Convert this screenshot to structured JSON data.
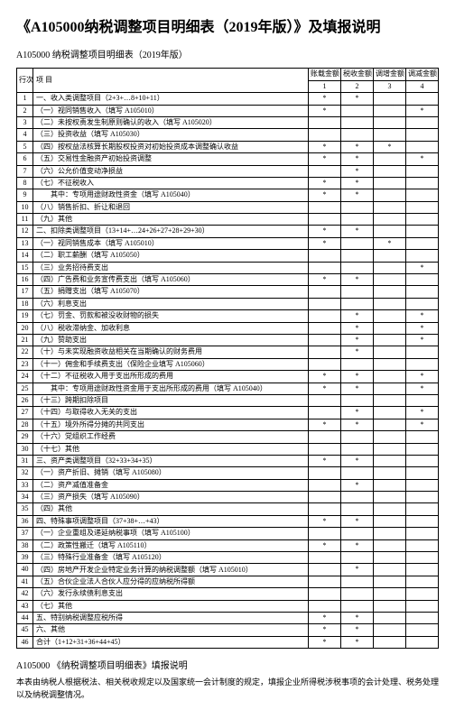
{
  "title": "《A105000纳税调整项目明细表（2019年版）》及填报说明",
  "subtitle": "A105000 纳税调整项目明细表（2019年版）",
  "header": {
    "rownum": "行次",
    "item": "项 目",
    "c1": "账载金额",
    "c2": "税收金额",
    "c3": "调增金额",
    "c4": "调减金额",
    "n1": "1",
    "n2": "2",
    "n3": "3",
    "n4": "4"
  },
  "rows": [
    {
      "n": "1",
      "item": "一、收入类调整项目（2+3+…8+10+11）",
      "c1": "*",
      "c2": "*",
      "c3": "",
      "c4": ""
    },
    {
      "n": "2",
      "item": "（一）视同销售收入（填写 A105010）",
      "c1": "*",
      "c2": "",
      "c3": "",
      "c4": "*"
    },
    {
      "n": "3",
      "item": "（二）未按权责发生制原则确认的收入（填写 A105020）",
      "c1": "",
      "c2": "",
      "c3": "",
      "c4": ""
    },
    {
      "n": "4",
      "item": "（三）投资收益（填写 A105030）",
      "c1": "",
      "c2": "",
      "c3": "",
      "c4": ""
    },
    {
      "n": "5",
      "item": "（四）按权益法核算长期股权投资对初始投资成本调整确认收益",
      "c1": "*",
      "c2": "*",
      "c3": "*",
      "c4": "",
      "wrap": true
    },
    {
      "n": "6",
      "item": "（五）交易性金融资产初始投资调整",
      "c1": "*",
      "c2": "*",
      "c3": "",
      "c4": "*"
    },
    {
      "n": "7",
      "item": "（六）公允价值变动净损益",
      "c1": "",
      "c2": "*",
      "c3": "",
      "c4": ""
    },
    {
      "n": "8",
      "item": "（七）不征税收入",
      "c1": "*",
      "c2": "*",
      "c3": "",
      "c4": ""
    },
    {
      "n": "9",
      "item": "　　其中：专项用途财政性资金（填写 A105040）",
      "c1": "*",
      "c2": "*",
      "c3": "",
      "c4": ""
    },
    {
      "n": "10",
      "item": "（八）销售折扣、折让和退回",
      "c1": "",
      "c2": "",
      "c3": "",
      "c4": ""
    },
    {
      "n": "11",
      "item": "（九）其他",
      "c1": "",
      "c2": "",
      "c3": "",
      "c4": ""
    },
    {
      "n": "12",
      "item": "二、扣除类调整项目（13+14+…24+26+27+28+29+30）",
      "c1": "*",
      "c2": "*",
      "c3": "",
      "c4": ""
    },
    {
      "n": "13",
      "item": "（一）视同销售成本（填写 A105010）",
      "c1": "*",
      "c2": "",
      "c3": "*",
      "c4": ""
    },
    {
      "n": "14",
      "item": "（二）职工薪酬（填写 A105050）",
      "c1": "",
      "c2": "",
      "c3": "",
      "c4": ""
    },
    {
      "n": "15",
      "item": "（三）业务招待费支出",
      "c1": "",
      "c2": "",
      "c3": "",
      "c4": "*"
    },
    {
      "n": "16",
      "item": "（四）广告费和业务宣传费支出（填写 A105060）",
      "c1": "*",
      "c2": "*",
      "c3": "",
      "c4": ""
    },
    {
      "n": "17",
      "item": "（五）捐赠支出（填写 A105070）",
      "c1": "",
      "c2": "",
      "c3": "",
      "c4": ""
    },
    {
      "n": "18",
      "item": "（六）利息支出",
      "c1": "",
      "c2": "",
      "c3": "",
      "c4": ""
    },
    {
      "n": "19",
      "item": "（七）罚金、罚款和被没收财物的损失",
      "c1": "",
      "c2": "*",
      "c3": "",
      "c4": "*"
    },
    {
      "n": "20",
      "item": "（八）税收滞纳金、加收利息",
      "c1": "",
      "c2": "*",
      "c3": "",
      "c4": "*"
    },
    {
      "n": "21",
      "item": "（九）赞助支出",
      "c1": "",
      "c2": "*",
      "c3": "",
      "c4": "*"
    },
    {
      "n": "22",
      "item": "（十）与未实现融资收益相关在当期确认的财务费用",
      "c1": "",
      "c2": "*",
      "c3": "",
      "c4": ""
    },
    {
      "n": "23",
      "item": "（十一）佣金和手续费支出（保险企业填写 A105060）",
      "c1": "",
      "c2": "",
      "c3": "",
      "c4": ""
    },
    {
      "n": "24",
      "item": "（十二）不征税收入用于支出所形成的费用",
      "c1": "*",
      "c2": "*",
      "c3": "",
      "c4": "*"
    },
    {
      "n": "25",
      "item": "　　其中：专项用途财政性资金用于支出所形成的费用（填写 A105040）",
      "c1": "*",
      "c2": "*",
      "c3": "",
      "c4": "*",
      "wrap": true
    },
    {
      "n": "26",
      "item": "（十三）跨期扣除项目",
      "c1": "",
      "c2": "",
      "c3": "",
      "c4": ""
    },
    {
      "n": "27",
      "item": "（十四）与取得收入无关的支出",
      "c1": "",
      "c2": "*",
      "c3": "",
      "c4": "*"
    },
    {
      "n": "28",
      "item": "（十五）境外所得分摊的共同支出",
      "c1": "*",
      "c2": "*",
      "c3": "",
      "c4": "*"
    },
    {
      "n": "29",
      "item": "（十六）党组织工作经费",
      "c1": "",
      "c2": "",
      "c3": "",
      "c4": ""
    },
    {
      "n": "30",
      "item": "（十七）其他",
      "c1": "",
      "c2": "",
      "c3": "",
      "c4": ""
    },
    {
      "n": "31",
      "item": "三、资产类调整项目（32+33+34+35）",
      "c1": "*",
      "c2": "*",
      "c3": "",
      "c4": ""
    },
    {
      "n": "32",
      "item": "（一）资产折旧、摊销（填写 A105080）",
      "c1": "",
      "c2": "",
      "c3": "",
      "c4": ""
    },
    {
      "n": "33",
      "item": "（二）资产减值准备金",
      "c1": "",
      "c2": "*",
      "c3": "",
      "c4": ""
    },
    {
      "n": "34",
      "item": "（三）资产损失（填写 A105090）",
      "c1": "",
      "c2": "",
      "c3": "",
      "c4": ""
    },
    {
      "n": "35",
      "item": "（四）其他",
      "c1": "",
      "c2": "",
      "c3": "",
      "c4": ""
    },
    {
      "n": "36",
      "item": "四、特殊事项调整项目（37+38+…+43）",
      "c1": "*",
      "c2": "*",
      "c3": "",
      "c4": ""
    },
    {
      "n": "37",
      "item": "（一）企业重组及递延纳税事项（填写 A105100）",
      "c1": "",
      "c2": "",
      "c3": "",
      "c4": ""
    },
    {
      "n": "38",
      "item": "（二）政策性搬迁（填写 A105110）",
      "c1": "*",
      "c2": "*",
      "c3": "",
      "c4": ""
    },
    {
      "n": "39",
      "item": "（三）特殊行业准备金（填写 A105120）",
      "c1": "",
      "c2": "",
      "c3": "",
      "c4": ""
    },
    {
      "n": "40",
      "item": "（四）房地产开发企业特定业务计算的纳税调整额（填写 A105010）",
      "c1": "",
      "c2": "*",
      "c3": "",
      "c4": "",
      "wrap": true
    },
    {
      "n": "41",
      "item": "（五）合伙企业法人合伙人应分得的应纳税所得额",
      "c1": "",
      "c2": "",
      "c3": "",
      "c4": ""
    },
    {
      "n": "42",
      "item": "（六）发行永续债利息支出",
      "c1": "",
      "c2": "",
      "c3": "",
      "c4": ""
    },
    {
      "n": "43",
      "item": "（七）其他",
      "c1": "",
      "c2": "",
      "c3": "",
      "c4": ""
    },
    {
      "n": "44",
      "item": "五、特别纳税调整应税所得",
      "c1": "*",
      "c2": "*",
      "c3": "",
      "c4": ""
    },
    {
      "n": "45",
      "item": "六、其他",
      "c1": "*",
      "c2": "*",
      "c3": "",
      "c4": ""
    },
    {
      "n": "46",
      "item": "合计（1+12+31+36+44+45）",
      "c1": "*",
      "c2": "*",
      "c3": "",
      "c4": ""
    }
  ],
  "footerTitle": "A105000 《纳税调整项目明细表》填报说明",
  "footerText": "本表由纳税人根据税法、相关税收规定以及国家统一会计制度的规定，填报企业所得税涉税事项的会计处理、税务处理以及纳税调整情况。"
}
